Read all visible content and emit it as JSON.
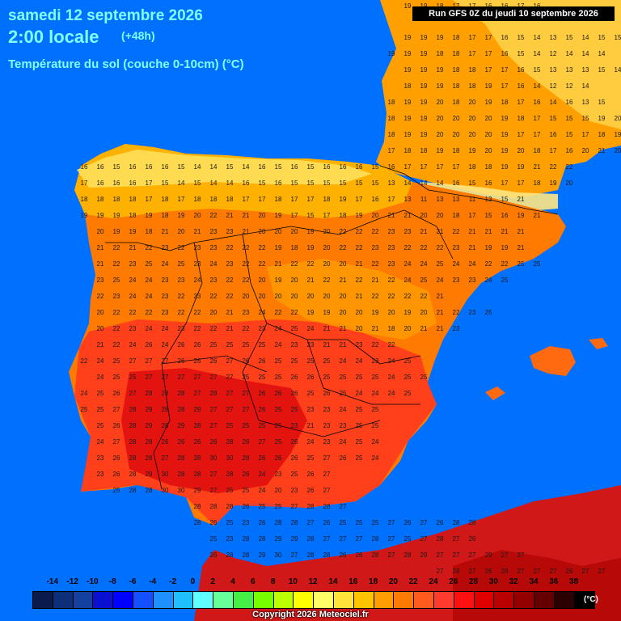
{
  "header": {
    "date": "samedi 12 septembre 2026",
    "time": "2:00 locale",
    "lead": "(+48h)",
    "parameter": "Température du sol (couche 0-10cm) (°C)",
    "run": "Run GFS 0Z du jeudi 10 septembre 2026"
  },
  "legend": {
    "labels": [
      "-14",
      "-12",
      "-10",
      "-8",
      "-6",
      "-4",
      "-2",
      "0",
      "2",
      "4",
      "6",
      "8",
      "10",
      "12",
      "14",
      "16",
      "18",
      "20",
      "22",
      "24",
      "26",
      "28",
      "30",
      "32",
      "34",
      "36",
      "38"
    ],
    "colors": [
      "#0a1a4a",
      "#0d2f7a",
      "#1440a0",
      "#0a10d0",
      "#0000ff",
      "#1450ff",
      "#1e90ff",
      "#20c0ff",
      "#5fffff",
      "#66ff99",
      "#44ee44",
      "#77ff00",
      "#bbff00",
      "#ffff00",
      "#ffff66",
      "#ffe23a",
      "#ffc400",
      "#ff9d00",
      "#ff7a00",
      "#ff5a1e",
      "#ff3a2e",
      "#ff1010",
      "#e00000",
      "#bb0000",
      "#940000",
      "#660000",
      "#2a0000",
      "#000000"
    ],
    "unit": "(°C)"
  },
  "copyright": "Copyright 2026 Meteociel.fr",
  "map": {
    "colors": {
      "sea": "#0070ff",
      "north": "#ffb400",
      "central": "#ff7a00",
      "south": "#ff3a1e",
      "hot": "#e01010",
      "africa": "#d01818",
      "cool": "#ffe060"
    },
    "grid_rows": [
      {
        "y": 4,
        "x0": 500,
        "values": [
          19,
          19,
          18,
          17,
          17,
          16,
          16,
          17,
          16
        ]
      },
      {
        "y": 43,
        "x0": 500,
        "values": [
          19,
          19,
          19,
          18,
          17,
          17,
          16,
          15,
          14,
          13,
          15,
          14,
          15,
          15
        ]
      },
      {
        "y": 63,
        "x0": 480,
        "values": [
          19,
          19,
          19,
          18,
          18,
          17,
          17,
          16,
          15,
          14,
          12,
          14,
          14,
          14
        ]
      },
      {
        "y": 83,
        "x0": 500,
        "values": [
          19,
          19,
          19,
          18,
          18,
          17,
          17,
          16,
          15,
          13,
          13,
          13,
          15,
          14
        ]
      },
      {
        "y": 103,
        "x0": 500,
        "values": [
          18,
          19,
          19,
          18,
          18,
          19,
          17,
          16,
          14,
          12,
          12,
          14
        ]
      },
      {
        "y": 123,
        "x0": 480,
        "values": [
          18,
          19,
          19,
          20,
          18,
          20,
          19,
          18,
          17,
          16,
          14,
          16,
          13,
          15
        ]
      },
      {
        "y": 143,
        "x0": 480,
        "values": [
          18,
          19,
          19,
          20,
          20,
          20,
          20,
          19,
          18,
          17,
          15,
          15,
          15,
          19,
          20
        ]
      },
      {
        "y": 163,
        "x0": 480,
        "values": [
          18,
          19,
          19,
          20,
          20,
          20,
          20,
          19,
          17,
          17,
          16,
          15,
          17,
          18,
          19,
          19
        ]
      },
      {
        "y": 183,
        "x0": 480,
        "values": [
          17,
          18,
          18,
          19,
          18,
          19,
          20,
          19,
          20,
          18,
          17,
          16,
          20,
          21,
          20,
          20,
          21
        ]
      },
      {
        "y": 203,
        "x0": 100,
        "values": [
          16,
          16,
          15,
          16,
          16,
          16,
          15,
          14,
          14,
          15,
          14,
          16,
          15,
          16,
          15,
          16,
          16,
          16,
          15,
          16,
          17,
          17,
          17,
          17,
          18,
          18,
          19,
          19,
          21,
          22,
          22
        ]
      },
      {
        "y": 223,
        "x0": 100,
        "values": [
          17,
          16,
          16,
          16,
          17,
          15,
          14,
          15,
          14,
          14,
          16,
          15,
          16,
          15,
          15,
          15,
          15,
          15,
          15,
          13,
          14,
          14,
          14,
          16,
          15,
          16,
          17,
          17,
          18,
          19,
          20
        ]
      },
      {
        "y": 243,
        "x0": 100,
        "values": [
          18,
          18,
          18,
          18,
          17,
          18,
          17,
          18,
          18,
          18,
          17,
          17,
          18,
          17,
          17,
          18,
          19,
          17,
          16,
          17,
          13,
          11,
          13,
          13,
          11,
          13,
          15,
          21
        ]
      },
      {
        "y": 263,
        "x0": 100,
        "values": [
          19,
          19,
          19,
          18,
          19,
          18,
          19,
          20,
          22,
          21,
          21,
          20,
          19,
          17,
          15,
          17,
          18,
          19,
          20,
          21,
          21,
          20,
          20,
          18,
          17,
          15,
          16,
          19,
          21
        ]
      },
      {
        "y": 283,
        "x0": 120,
        "values": [
          20,
          19,
          19,
          18,
          21,
          20,
          21,
          23,
          23,
          21,
          20,
          20,
          20,
          19,
          20,
          22,
          22,
          22,
          23,
          23,
          21,
          21,
          22,
          21,
          21,
          21,
          21
        ]
      },
      {
        "y": 303,
        "x0": 120,
        "values": [
          21,
          22,
          21,
          22,
          23,
          22,
          23,
          23,
          22,
          22,
          22,
          19,
          18,
          19,
          20,
          22,
          22,
          23,
          23,
          22,
          22,
          22,
          23,
          21,
          19,
          19,
          21
        ]
      },
      {
        "y": 323,
        "x0": 120,
        "values": [
          21,
          22,
          23,
          25,
          24,
          25,
          23,
          24,
          23,
          22,
          22,
          21,
          22,
          22,
          20,
          20,
          21,
          22,
          23,
          24,
          24,
          25,
          24,
          24,
          22,
          22,
          25,
          25
        ]
      },
      {
        "y": 343,
        "x0": 120,
        "values": [
          23,
          25,
          24,
          24,
          23,
          23,
          24,
          23,
          22,
          22,
          20,
          19,
          20,
          21,
          22,
          21,
          22,
          21,
          22,
          24,
          25,
          24,
          23,
          23,
          24,
          25
        ]
      },
      {
        "y": 363,
        "x0": 120,
        "values": [
          22,
          23,
          24,
          24,
          23,
          22,
          23,
          22,
          22,
          20,
          20,
          20,
          20,
          20,
          20,
          20,
          21,
          22,
          22,
          22,
          22,
          21
        ]
      },
      {
        "y": 383,
        "x0": 120,
        "values": [
          20,
          22,
          22,
          22,
          23,
          22,
          22,
          20,
          21,
          23,
          24,
          22,
          22,
          19,
          19,
          20,
          20,
          19,
          20,
          19,
          20,
          21,
          22,
          23,
          25
        ]
      },
      {
        "y": 403,
        "x0": 120,
        "values": [
          20,
          22,
          23,
          24,
          24,
          23,
          22,
          22,
          21,
          22,
          23,
          24,
          25,
          24,
          21,
          21,
          20,
          21,
          18,
          20,
          21,
          21,
          23
        ]
      },
      {
        "y": 423,
        "x0": 120,
        "values": [
          21,
          22,
          24,
          26,
          24,
          26,
          26,
          25,
          25,
          25,
          25,
          24,
          23,
          23,
          21,
          21,
          23,
          22,
          22
        ]
      },
      {
        "y": 443,
        "x0": 100,
        "values": [
          22,
          24,
          25,
          27,
          27,
          27,
          26,
          26,
          26,
          27,
          26,
          26,
          25,
          25,
          25,
          25,
          24,
          24,
          23,
          24,
          25
        ]
      },
      {
        "y": 463,
        "x0": 120,
        "values": [
          24,
          25,
          25,
          27,
          27,
          27,
          27,
          27,
          27,
          25,
          25,
          25,
          26,
          26,
          25,
          25,
          25,
          25,
          24,
          25,
          25
        ]
      },
      {
        "y": 483,
        "x0": 100,
        "values": [
          24,
          25,
          26,
          27,
          28,
          28,
          28,
          27,
          28,
          27,
          27,
          26,
          26,
          26,
          25,
          26,
          25,
          24,
          24,
          24,
          25
        ]
      },
      {
        "y": 503,
        "x0": 100,
        "values": [
          25,
          25,
          27,
          28,
          29,
          28,
          28,
          29,
          27,
          27,
          27,
          26,
          25,
          25,
          23,
          23,
          24,
          25,
          25
        ]
      },
      {
        "y": 523,
        "x0": 120,
        "values": [
          25,
          26,
          28,
          29,
          28,
          29,
          28,
          27,
          25,
          25,
          25,
          25,
          23,
          21,
          23,
          23,
          25,
          25
        ]
      },
      {
        "y": 543,
        "x0": 120,
        "values": [
          24,
          27,
          28,
          28,
          26,
          26,
          26,
          26,
          28,
          26,
          27,
          25,
          26,
          24,
          23,
          24,
          25,
          24
        ]
      },
      {
        "y": 563,
        "x0": 120,
        "values": [
          23,
          26,
          28,
          28,
          27,
          28,
          28,
          30,
          30,
          28,
          26,
          26,
          26,
          25,
          27,
          26,
          25,
          24
        ]
      },
      {
        "y": 583,
        "x0": 120,
        "values": [
          23,
          26,
          28,
          29,
          30,
          28,
          28,
          27,
          28,
          26,
          24,
          23,
          25,
          26,
          27
        ]
      },
      {
        "y": 603,
        "x0": 140,
        "values": [
          25,
          28,
          28,
          30,
          30,
          29,
          27,
          25,
          25,
          24,
          20,
          23,
          26,
          27
        ]
      },
      {
        "y": 623,
        "x0": 240,
        "values": [
          28,
          28,
          28,
          26,
          25,
          25,
          27,
          28,
          28,
          27
        ]
      },
      {
        "y": 643,
        "x0": 240,
        "values": [
          28,
          26,
          25,
          23,
          26,
          28,
          28,
          27,
          26,
          25,
          25,
          25,
          27,
          26,
          27,
          26,
          28,
          28
        ]
      },
      {
        "y": 663,
        "x0": 260,
        "values": [
          25,
          23,
          28,
          28,
          29,
          29,
          28,
          27,
          27,
          27,
          28,
          27,
          25,
          27,
          28,
          27,
          26
        ]
      },
      {
        "y": 683,
        "x0": 260,
        "values": [
          26,
          28,
          28,
          29,
          30,
          27,
          28,
          28,
          26,
          26,
          28,
          27,
          28,
          29,
          27,
          27,
          27,
          29,
          27,
          27
        ]
      },
      {
        "y": 703,
        "x0": 540,
        "values": [
          27,
          28,
          27,
          26,
          28,
          27,
          27,
          27,
          26,
          27,
          27
        ]
      }
    ]
  }
}
